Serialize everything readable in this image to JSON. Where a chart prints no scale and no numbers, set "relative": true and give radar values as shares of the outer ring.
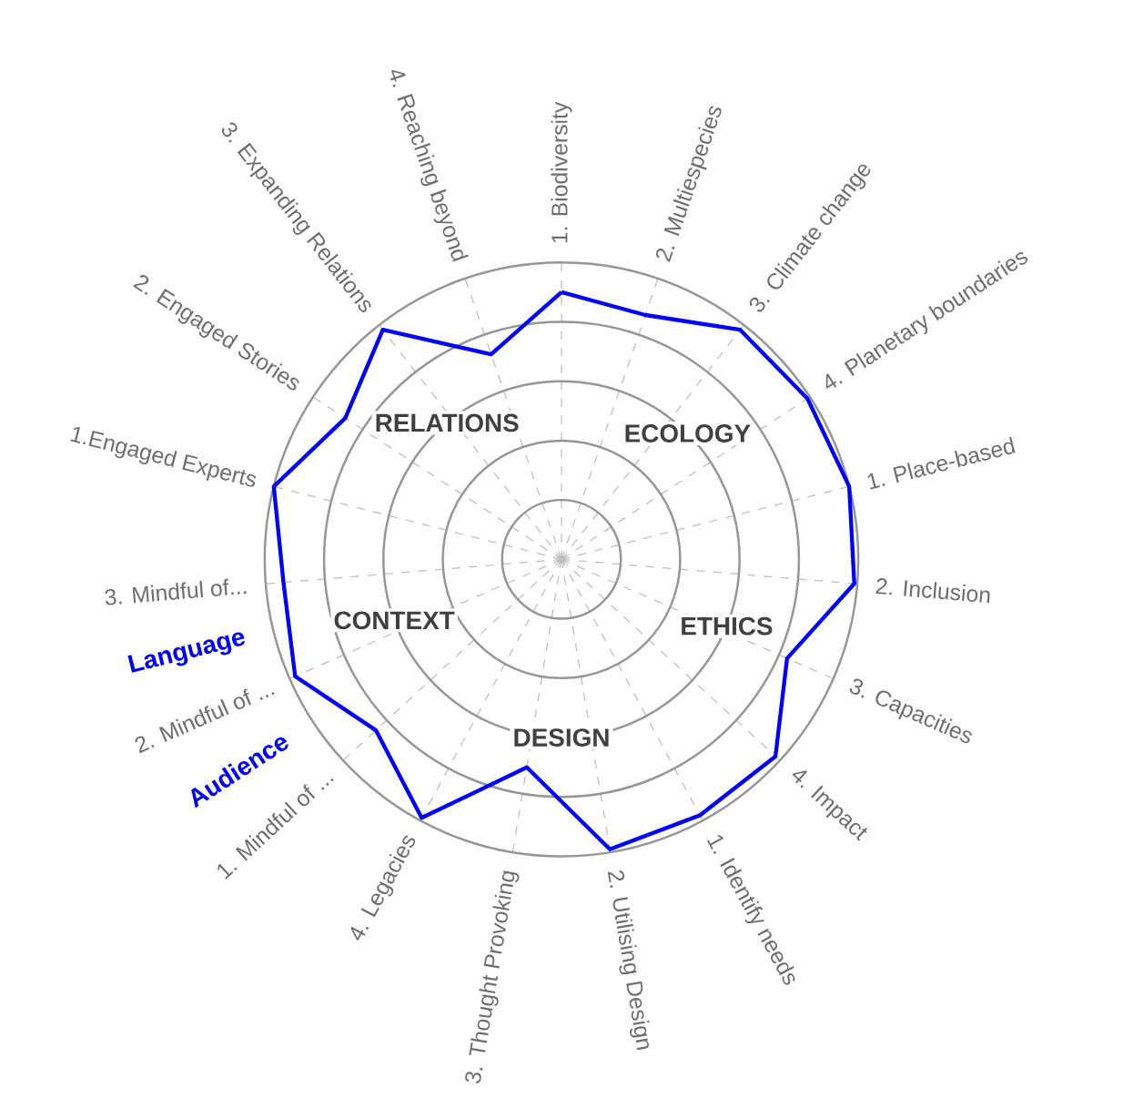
{
  "chart_data": {
    "type": "radar",
    "relative": true,
    "grid": true,
    "categories": [
      "1. Biodiversity",
      "2. Multiespecies",
      "3. Climate change",
      "4. Planetary boundaries",
      "1. Place-based",
      "2. Inclusion",
      "3. Capacities",
      "4. Impact",
      "1. Identify needs",
      "2. Utilising Design",
      "3. Thought Provoking",
      "4. Legacies",
      "1. Mindful of ...",
      "2. Mindful of ...",
      "3. Mindful of...",
      "1.Engaged Experts",
      "2. Engaged Stories",
      "3. Expanding Relations",
      "4. Reaching beyond"
    ],
    "series": [
      {
        "color": "#0000ff",
        "values": [
          0.9,
          0.87,
          0.98,
          0.99,
          1.0,
          0.99,
          0.83,
          0.98,
          0.98,
          0.99,
          0.71,
          0.99,
          0.85,
          0.98,
          0.94,
          1.0,
          0.87,
          0.98,
          0.73
        ]
      }
    ],
    "annotations": [
      "ECOLOGY",
      "ETHICS",
      "DESIGN",
      "CONTEXT",
      "RELATIONS",
      "Language",
      "Audience"
    ]
  }
}
